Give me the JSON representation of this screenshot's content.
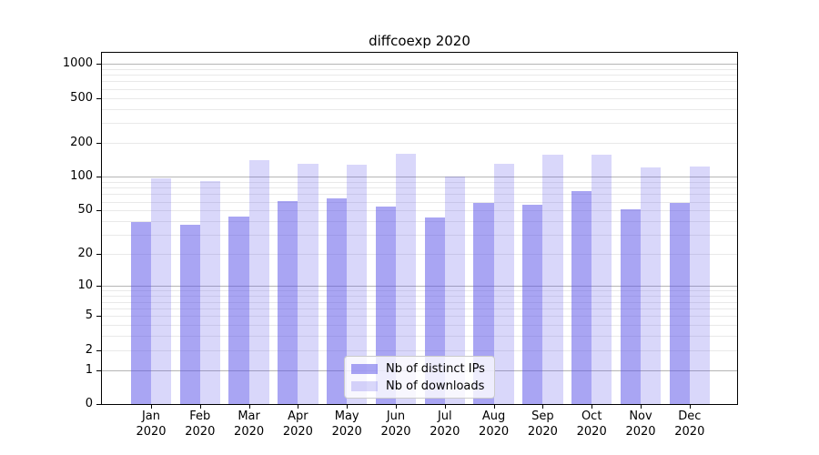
{
  "figure": {
    "title": "diffcoexp 2020"
  },
  "legend": {
    "items": [
      {
        "label": "Nb of distinct IPs",
        "swatch": "dark"
      },
      {
        "label": "Nb of downloads",
        "swatch": "light"
      }
    ]
  },
  "colors": {
    "bar_base_rgb": "83,75,231",
    "bar_dark_alpha": 0.5,
    "bar_light_alpha": 0.22,
    "grid_major": "#b5b5b5",
    "grid_minor": "#e9e9e9",
    "axis": "#000000"
  },
  "chart_data": {
    "type": "bar",
    "title": "diffcoexp 2020",
    "categories": [
      "Jan 2020",
      "Feb 2020",
      "Mar 2020",
      "Apr 2020",
      "May 2020",
      "Jun 2020",
      "Jul 2020",
      "Aug 2020",
      "Sep 2020",
      "Oct 2020",
      "Nov 2020",
      "Dec 2020"
    ],
    "x_tick_line1": [
      "Jan",
      "Feb",
      "Mar",
      "Apr",
      "May",
      "Jun",
      "Jul",
      "Aug",
      "Sep",
      "Oct",
      "Nov",
      "Dec"
    ],
    "x_tick_line2": [
      "2020",
      "2020",
      "2020",
      "2020",
      "2020",
      "2020",
      "2020",
      "2020",
      "2020",
      "2020",
      "2020",
      "2020"
    ],
    "series": [
      {
        "name": "Nb of distinct IPs",
        "values": [
          39,
          37,
          44,
          61,
          64,
          54,
          43,
          58,
          56,
          74,
          51,
          58
        ]
      },
      {
        "name": "Nb of downloads",
        "values": [
          96,
          92,
          141,
          131,
          129,
          161,
          100,
          130,
          158,
          157,
          121,
          124
        ]
      }
    ],
    "y_ticks": [
      0,
      1,
      2,
      5,
      10,
      20,
      50,
      100,
      200,
      500,
      1000
    ],
    "y_scale": "log10(v+1)",
    "ylim": [
      0,
      1250
    ],
    "grid": "both",
    "legend_position": "lower center",
    "xlabel": "",
    "ylabel": ""
  }
}
